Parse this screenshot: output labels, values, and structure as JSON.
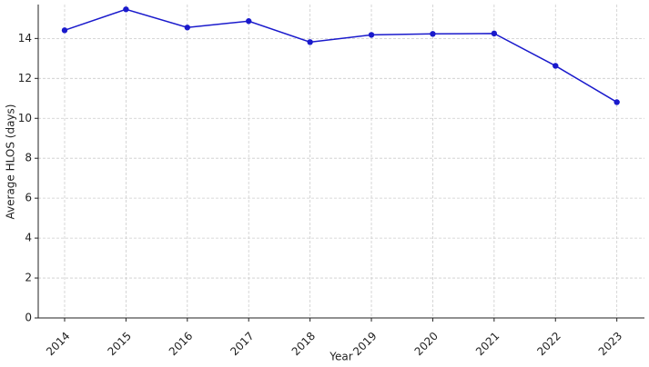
{
  "chart_data": {
    "type": "line",
    "x_label": "Year",
    "y_label": "Average HLOS (days)",
    "x": [
      2014,
      2015,
      2016,
      2017,
      2018,
      2019,
      2020,
      2021,
      2022,
      2023
    ],
    "series": [
      {
        "color": "#1a1acc",
        "values": [
          14.41,
          15.46,
          14.55,
          14.87,
          13.82,
          14.18,
          14.23,
          14.25,
          12.63,
          10.81
        ]
      }
    ],
    "xlim": [
      2013.57,
      2023.45
    ],
    "xticks": [
      2014,
      2015,
      2016,
      2017,
      2018,
      2019,
      2020,
      2021,
      2022,
      2023
    ],
    "ylim": [
      0,
      15.7
    ],
    "yticks": [
      0,
      2,
      4,
      6,
      8,
      10,
      12,
      14
    ],
    "grid": true
  }
}
